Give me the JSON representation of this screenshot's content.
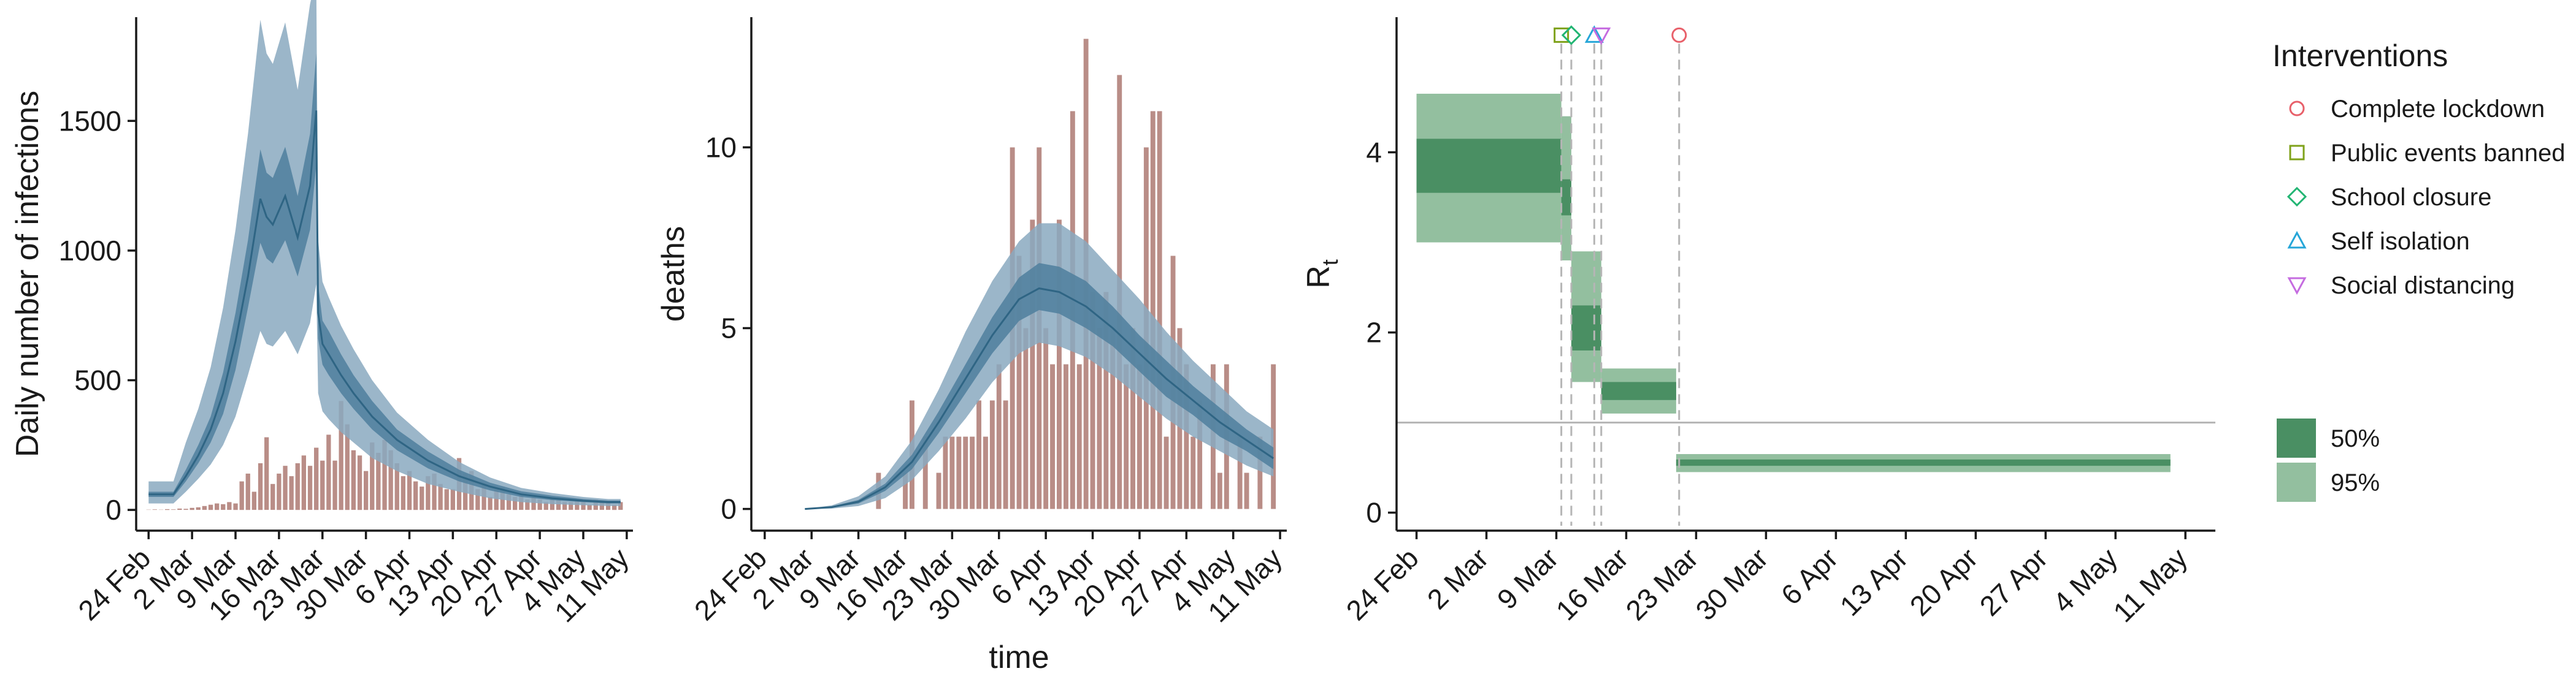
{
  "chart_data": [
    {
      "type": "area",
      "ylabel": "Daily number of infections",
      "xlabel": "",
      "x_ticks": [
        "24 Feb",
        "2 Mar",
        "9 Mar",
        "16 Mar",
        "23 Mar",
        "30 Mar",
        "6 Apr",
        "13 Apr",
        "20 Apr",
        "27 Apr",
        "4 May",
        "11 May"
      ],
      "x_domain_days": [
        -2,
        78
      ],
      "ylim": [
        -80,
        1900
      ],
      "y_ticks": [
        0,
        500,
        1000,
        1500
      ],
      "colors": {
        "band95": "#8aa9c0",
        "band50": "#4f7f9e",
        "line": "#2f6584",
        "bars": "#b98d87"
      },
      "observed_cases": [
        [
          0,
          1
        ],
        [
          1,
          2
        ],
        [
          2,
          1
        ],
        [
          3,
          3
        ],
        [
          4,
          2
        ],
        [
          5,
          5
        ],
        [
          6,
          4
        ],
        [
          7,
          8
        ],
        [
          8,
          10
        ],
        [
          9,
          15
        ],
        [
          10,
          20
        ],
        [
          11,
          25
        ],
        [
          12,
          22
        ],
        [
          13,
          30
        ],
        [
          14,
          25
        ],
        [
          15,
          110
        ],
        [
          16,
          140
        ],
        [
          17,
          70
        ],
        [
          18,
          180
        ],
        [
          19,
          280
        ],
        [
          20,
          100
        ],
        [
          21,
          140
        ],
        [
          22,
          170
        ],
        [
          23,
          130
        ],
        [
          24,
          180
        ],
        [
          25,
          210
        ],
        [
          26,
          170
        ],
        [
          27,
          240
        ],
        [
          28,
          190
        ],
        [
          29,
          290
        ],
        [
          30,
          190
        ],
        [
          31,
          420
        ],
        [
          32,
          330
        ],
        [
          33,
          230
        ],
        [
          34,
          210
        ],
        [
          35,
          150
        ],
        [
          36,
          260
        ],
        [
          37,
          220
        ],
        [
          38,
          270
        ],
        [
          39,
          230
        ],
        [
          40,
          180
        ],
        [
          41,
          130
        ],
        [
          42,
          150
        ],
        [
          43,
          110
        ],
        [
          44,
          90
        ],
        [
          45,
          130
        ],
        [
          46,
          140
        ],
        [
          47,
          100
        ],
        [
          48,
          80
        ],
        [
          49,
          80
        ],
        [
          50,
          200
        ],
        [
          51,
          140
        ],
        [
          52,
          150
        ],
        [
          53,
          80
        ],
        [
          54,
          100
        ],
        [
          55,
          50
        ],
        [
          56,
          80
        ],
        [
          57,
          90
        ],
        [
          58,
          60
        ],
        [
          59,
          50
        ],
        [
          60,
          60
        ],
        [
          61,
          40
        ],
        [
          62,
          50
        ],
        [
          63,
          40
        ],
        [
          64,
          30
        ],
        [
          65,
          50
        ],
        [
          66,
          40
        ],
        [
          67,
          30
        ],
        [
          68,
          30
        ],
        [
          69,
          40
        ],
        [
          70,
          30
        ],
        [
          71,
          20
        ],
        [
          72,
          40
        ],
        [
          73,
          30
        ],
        [
          74,
          30
        ],
        [
          75,
          20
        ],
        [
          76,
          30
        ]
      ],
      "predicted": {
        "x": [
          0,
          4,
          6,
          8,
          10,
          12,
          14,
          16,
          18,
          19,
          20,
          22,
          24,
          26,
          27,
          27.3,
          28,
          29,
          31,
          33,
          36,
          40,
          45,
          50,
          55,
          60,
          65,
          70,
          74,
          76
        ],
        "median": [
          60,
          60,
          130,
          210,
          310,
          450,
          650,
          900,
          1200,
          1130,
          1100,
          1210,
          1050,
          1250,
          1540,
          760,
          640,
          600,
          520,
          450,
          360,
          270,
          190,
          130,
          90,
          60,
          45,
          35,
          30,
          30
        ],
        "lower50": [
          50,
          50,
          110,
          180,
          260,
          370,
          540,
          780,
          1030,
          970,
          950,
          1040,
          900,
          1080,
          1330,
          660,
          560,
          520,
          450,
          390,
          310,
          230,
          160,
          110,
          75,
          50,
          38,
          30,
          25,
          25
        ],
        "upper50": [
          70,
          70,
          155,
          250,
          360,
          530,
          760,
          1040,
          1390,
          1300,
          1280,
          1400,
          1210,
          1450,
          1760,
          870,
          730,
          690,
          600,
          520,
          420,
          310,
          225,
          155,
          105,
          72,
          55,
          42,
          36,
          36
        ],
        "lower95": [
          25,
          25,
          70,
          120,
          175,
          250,
          360,
          520,
          690,
          640,
          630,
          690,
          600,
          720,
          870,
          450,
          380,
          350,
          300,
          260,
          200,
          150,
          100,
          70,
          45,
          30,
          22,
          18,
          15,
          15
        ],
        "upper95": [
          110,
          110,
          260,
          390,
          550,
          780,
          1080,
          1450,
          1890,
          1760,
          1720,
          1880,
          1620,
          1950,
          2060,
          1040,
          880,
          820,
          710,
          620,
          500,
          375,
          270,
          185,
          125,
          85,
          65,
          50,
          42,
          42
        ]
      }
    },
    {
      "type": "area",
      "ylabel": "deaths",
      "xlabel": "time",
      "x_ticks": [
        "24 Feb",
        "2 Mar",
        "9 Mar",
        "16 Mar",
        "23 Mar",
        "30 Mar",
        "6 Apr",
        "13 Apr",
        "20 Apr",
        "27 Apr",
        "4 May",
        "11 May"
      ],
      "x_domain_days": [
        -2,
        78
      ],
      "ylim": [
        -0.6,
        13.6
      ],
      "y_ticks": [
        0,
        5,
        10
      ],
      "colors": {
        "band95": "#8aa9c0",
        "band50": "#4f7f9e",
        "line": "#2f6584",
        "bars": "#b98d87"
      },
      "observed_deaths": [
        [
          17,
          1
        ],
        [
          21,
          1
        ],
        [
          22,
          3
        ],
        [
          24,
          2
        ],
        [
          26,
          1
        ],
        [
          27,
          2
        ],
        [
          28,
          2
        ],
        [
          29,
          2
        ],
        [
          30,
          2
        ],
        [
          31,
          2
        ],
        [
          32,
          3
        ],
        [
          33,
          2
        ],
        [
          34,
          3
        ],
        [
          35,
          4
        ],
        [
          36,
          3
        ],
        [
          37,
          10
        ],
        [
          38,
          7
        ],
        [
          39,
          5
        ],
        [
          40,
          8
        ],
        [
          41,
          10
        ],
        [
          42,
          5
        ],
        [
          43,
          4
        ],
        [
          44,
          8
        ],
        [
          45,
          4
        ],
        [
          46,
          11
        ],
        [
          47,
          4
        ],
        [
          48,
          13
        ],
        [
          49,
          6
        ],
        [
          50,
          5
        ],
        [
          51,
          6
        ],
        [
          52,
          5
        ],
        [
          53,
          12
        ],
        [
          54,
          4
        ],
        [
          55,
          5
        ],
        [
          56,
          4
        ],
        [
          57,
          10
        ],
        [
          58,
          11
        ],
        [
          59,
          11
        ],
        [
          60,
          2
        ],
        [
          61,
          7
        ],
        [
          62,
          5
        ],
        [
          63,
          4
        ],
        [
          64,
          2
        ],
        [
          65,
          3
        ],
        [
          67,
          4
        ],
        [
          68,
          1
        ],
        [
          69,
          4
        ],
        [
          71,
          2
        ],
        [
          72,
          1
        ],
        [
          74,
          2
        ],
        [
          76,
          4
        ]
      ],
      "predicted": {
        "x": [
          6,
          10,
          14,
          18,
          22,
          26,
          30,
          34,
          38,
          41,
          44,
          48,
          52,
          56,
          60,
          64,
          68,
          72,
          76
        ],
        "median": [
          0,
          0.05,
          0.2,
          0.6,
          1.3,
          2.4,
          3.6,
          4.8,
          5.8,
          6.1,
          6.0,
          5.6,
          5.0,
          4.3,
          3.6,
          3.0,
          2.4,
          1.9,
          1.4
        ],
        "lower50": [
          0,
          0.03,
          0.15,
          0.5,
          1.1,
          2.1,
          3.2,
          4.3,
          5.2,
          5.5,
          5.4,
          5.0,
          4.5,
          3.8,
          3.1,
          2.6,
          2.0,
          1.6,
          1.1
        ],
        "upper50": [
          0,
          0.07,
          0.25,
          0.7,
          1.5,
          2.7,
          4.0,
          5.3,
          6.4,
          6.8,
          6.7,
          6.3,
          5.6,
          4.8,
          4.1,
          3.4,
          2.8,
          2.2,
          1.7
        ],
        "lower95": [
          0,
          0.01,
          0.08,
          0.3,
          0.8,
          1.6,
          2.5,
          3.5,
          4.3,
          4.6,
          4.5,
          4.2,
          3.7,
          3.1,
          2.5,
          2.0,
          1.6,
          1.2,
          0.9
        ],
        "upper95": [
          0,
          0.1,
          0.35,
          0.9,
          1.9,
          3.3,
          4.9,
          6.3,
          7.4,
          7.9,
          7.9,
          7.4,
          6.6,
          5.8,
          4.9,
          4.1,
          3.4,
          2.7,
          2.2
        ]
      }
    },
    {
      "type": "area",
      "ylabel": "R",
      "ylabel_sub": "t",
      "xlabel": "",
      "x_ticks": [
        "24 Feb",
        "2 Mar",
        "9 Mar",
        "16 Mar",
        "23 Mar",
        "30 Mar",
        "6 Apr",
        "13 Apr",
        "20 Apr",
        "27 Apr",
        "4 May",
        "11 May"
      ],
      "x_domain_days": [
        -2,
        80
      ],
      "ylim": [
        -0.2,
        5.5
      ],
      "y_ticks": [
        0,
        2,
        4
      ],
      "reference_line": 1,
      "colors": {
        "band95": "#93bf9f",
        "band50": "#4a8f63",
        "line": "#3a7a52",
        "ref": "#b5b5b5",
        "vline": "#b5b5b5"
      },
      "rt_steps": [
        {
          "x0": 0,
          "x1": 14.5,
          "median": 3.85,
          "lower50": 3.55,
          "upper50": 4.15,
          "lower95": 3.0,
          "upper95": 4.65
        },
        {
          "x0": 14.5,
          "x1": 15.5,
          "median": 3.5,
          "lower50": 3.3,
          "upper50": 3.7,
          "lower95": 2.8,
          "upper95": 4.4
        },
        {
          "x0": 15.5,
          "x1": 18.5,
          "median": 2.05,
          "lower50": 1.8,
          "upper50": 2.3,
          "lower95": 1.45,
          "upper95": 2.9
        },
        {
          "x0": 18.5,
          "x1": 26,
          "median": 1.35,
          "lower50": 1.25,
          "upper50": 1.45,
          "lower95": 1.1,
          "upper95": 1.6
        },
        {
          "x0": 26,
          "x1": 75.5,
          "median": 0.55,
          "lower50": 0.52,
          "upper50": 0.59,
          "lower95": 0.45,
          "upper95": 0.65
        }
      ],
      "interventions": [
        {
          "name": "Complete lockdown",
          "day": 26.3,
          "shape": "circle",
          "color": "#e8606a"
        },
        {
          "name": "Public events banned",
          "day": 14.5,
          "shape": "square",
          "color": "#7fa21a"
        },
        {
          "name": "School closure",
          "day": 15.5,
          "shape": "diamond",
          "color": "#22b573"
        },
        {
          "name": "Self isolation",
          "day": 17.8,
          "shape": "triangle",
          "color": "#26a6d8"
        },
        {
          "name": "Social distancing",
          "day": 18.5,
          "shape": "triangle-down",
          "color": "#c56ce0"
        }
      ]
    }
  ],
  "legend": {
    "title": "Interventions",
    "items": [
      "Complete lockdown",
      "Public events banned",
      "School closure",
      "Self isolation",
      "Social distancing"
    ],
    "ci_items": [
      "50%",
      "95%"
    ]
  }
}
